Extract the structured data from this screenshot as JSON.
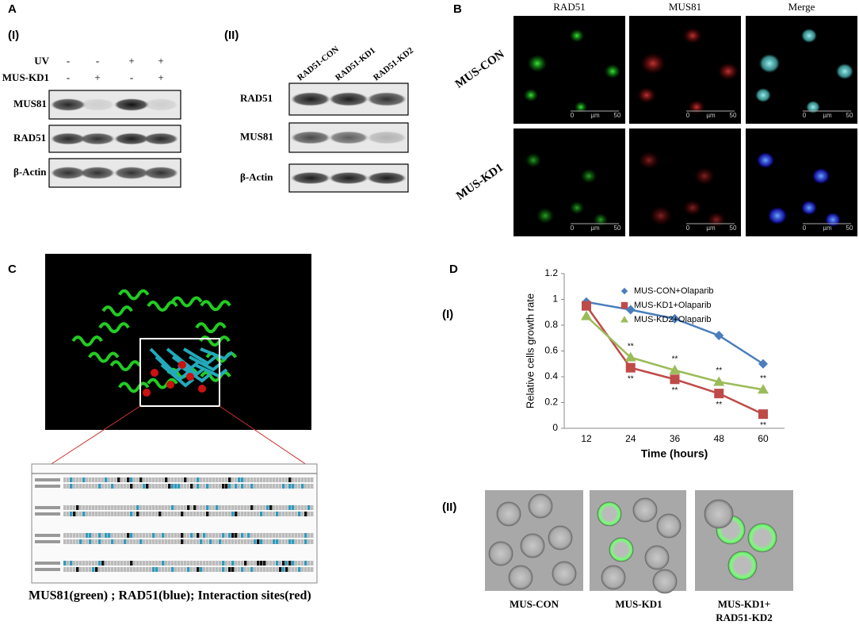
{
  "panel_a": {
    "label": "A",
    "part1": {
      "label": "(I)",
      "conditions": [
        {
          "name": "UV",
          "signs": [
            "-",
            "-",
            "+",
            "+"
          ]
        },
        {
          "name": "MUS-KD1",
          "signs": [
            "-",
            "+",
            "-",
            "+"
          ]
        }
      ],
      "blots": [
        "MUS81",
        "RAD51",
        "β-Actin"
      ]
    },
    "part2": {
      "label": "(II)",
      "lanes": [
        "RAD51-CON",
        "RAD51-KD1",
        "RAD51-KD2"
      ],
      "blots": [
        "RAD51",
        "MUS81",
        "β-Actin"
      ]
    }
  },
  "panel_b": {
    "label": "B",
    "columns": [
      "RAD51",
      "MUS81",
      "Merge"
    ],
    "rows": [
      "MUS-CON",
      "MUS-KD1"
    ],
    "scale_bar": {
      "start": "0",
      "unit": "µm",
      "end": "50"
    }
  },
  "panel_c": {
    "label": "C",
    "caption": "MUS81(green) ; RAD51(blue); Interaction  sites(red)"
  },
  "panel_d": {
    "label": "D",
    "part1_label": "(I)",
    "part2_label": "(II)",
    "images": [
      [
        "MUS-CON"
      ],
      [
        "MUS-KD1"
      ],
      [
        "MUS-KD1+",
        "RAD51-KD2"
      ]
    ]
  },
  "chart_data": {
    "type": "line",
    "y_label": "Relative cells growth rate",
    "x_label": "Time (hours)",
    "categories": [
      "12",
      "24",
      "36",
      "48",
      "60"
    ],
    "ylim": [
      0,
      1.2
    ],
    "yticks": [
      0,
      0.2,
      0.4,
      0.6,
      0.8,
      1,
      1.2
    ],
    "legend": "top-right",
    "series": [
      {
        "name": "MUS-CON+Olaparib",
        "color": "#4a7ebb",
        "marker": "diamond",
        "values": [
          0.98,
          0.92,
          0.85,
          0.72,
          0.5
        ],
        "sig_labels": [
          null,
          null,
          null,
          null,
          null
        ],
        "sig_side": "below"
      },
      {
        "name": "MUS-KD1+Olaparib",
        "color": "#be4b48",
        "marker": "square",
        "values": [
          0.95,
          0.47,
          0.38,
          0.27,
          0.11
        ],
        "sig_labels": [
          null,
          "**",
          "**",
          "**",
          "**"
        ],
        "sig_side": "below"
      },
      {
        "name": "MUS-KD2+Olaparib",
        "color": "#9bbb59",
        "marker": "triangle",
        "values": [
          0.87,
          0.55,
          0.45,
          0.36,
          0.3
        ],
        "sig_labels": [
          null,
          "**",
          "**",
          "**",
          "**"
        ],
        "sig_side": "above"
      }
    ]
  }
}
